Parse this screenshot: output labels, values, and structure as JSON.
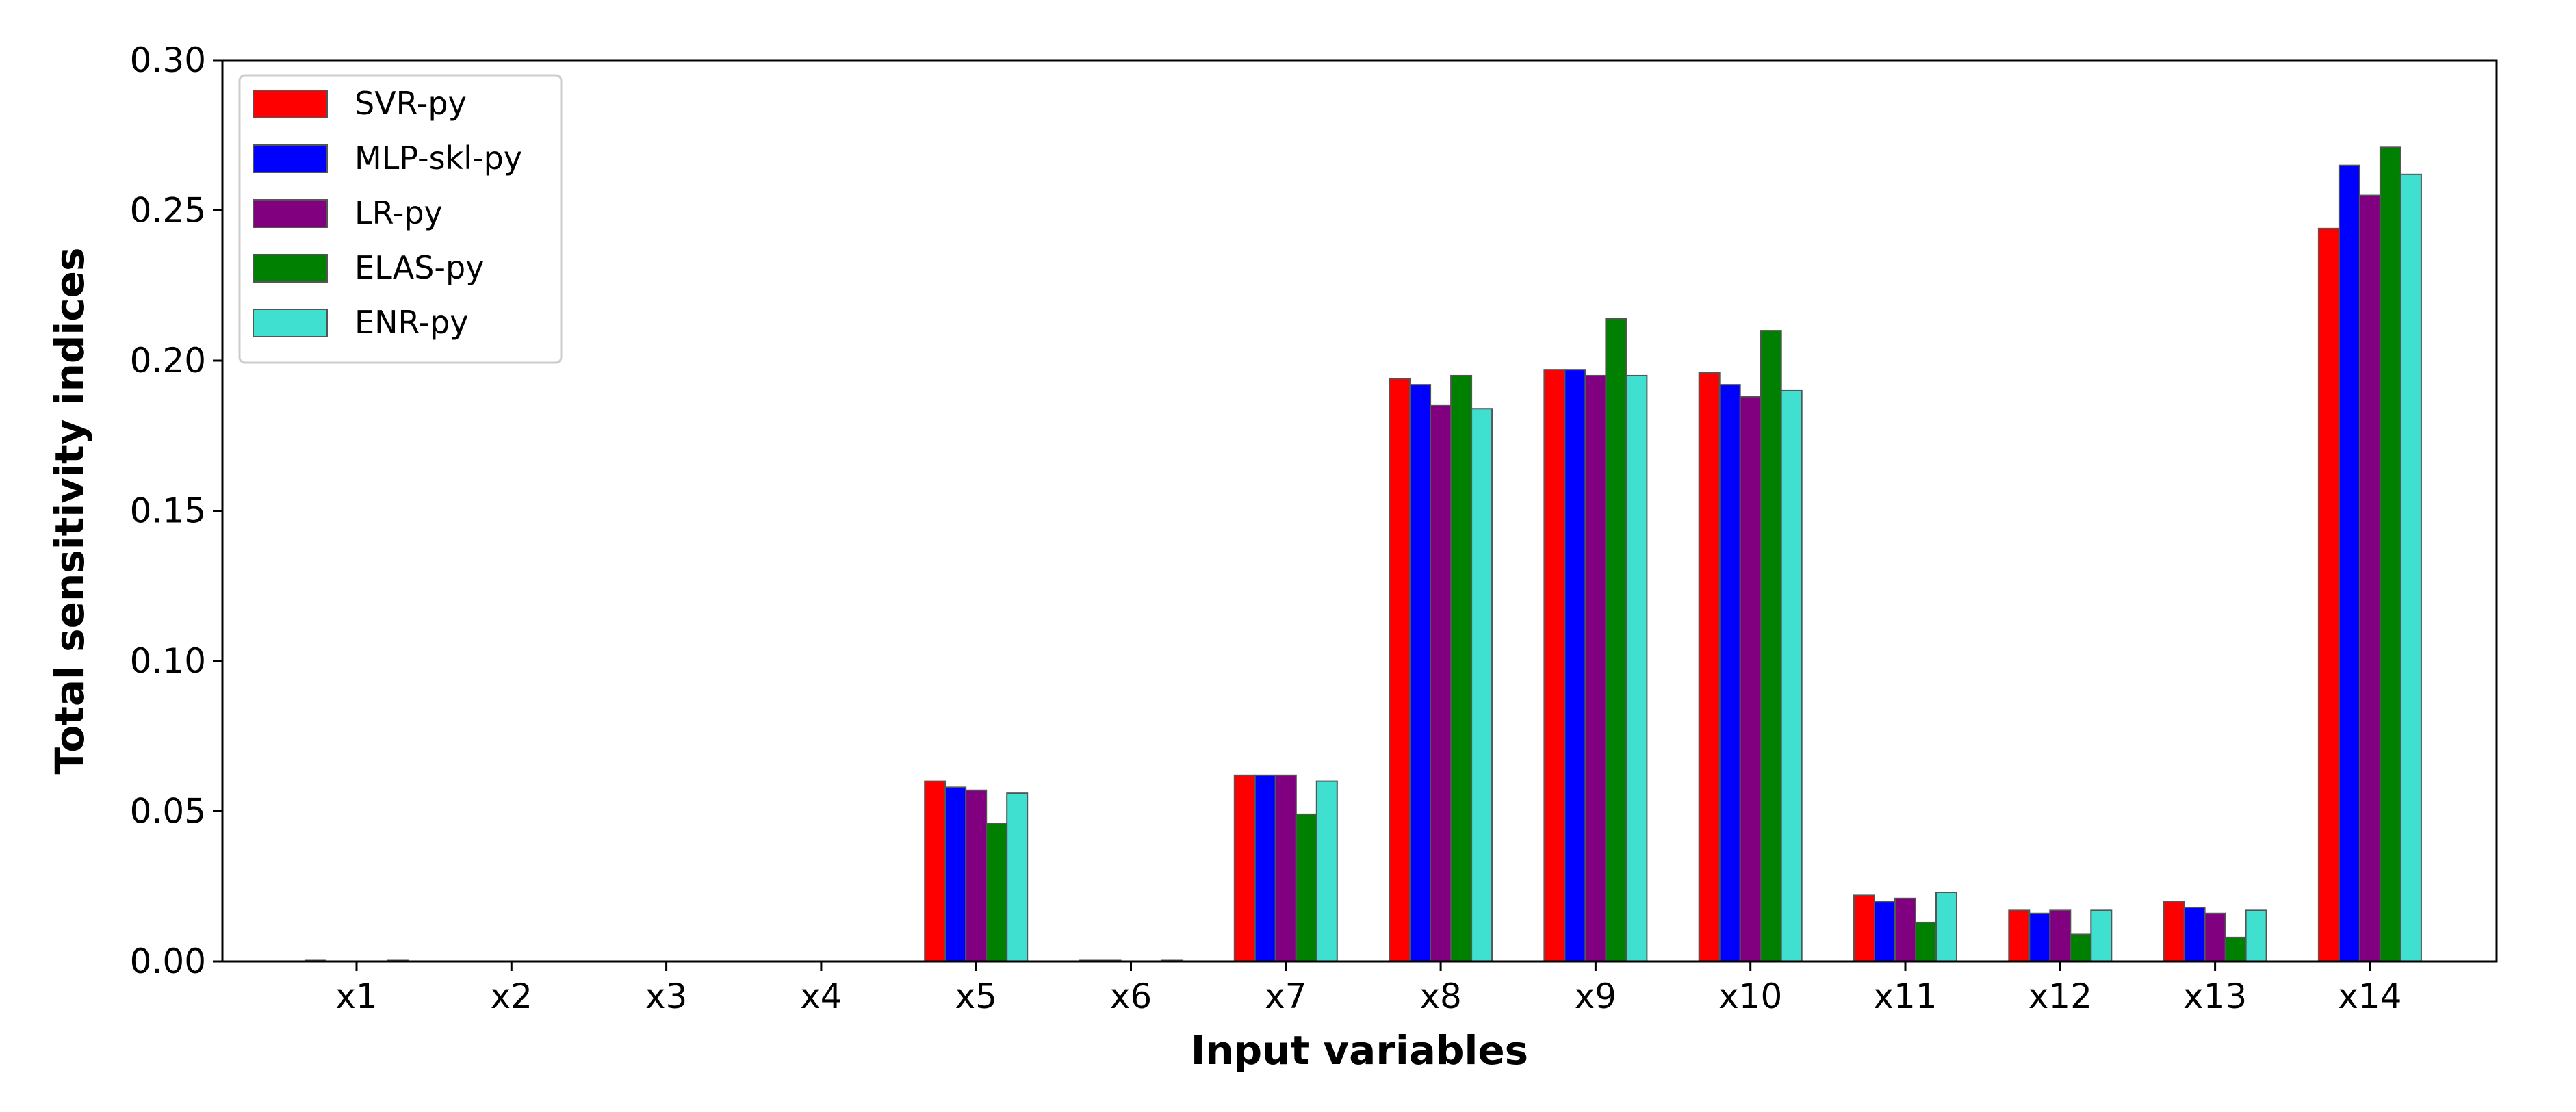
{
  "chart_data": {
    "type": "bar",
    "xlabel": "Input variables",
    "ylabel": "Total sensitivity indices",
    "categories": [
      "x1",
      "x2",
      "x3",
      "x4",
      "x5",
      "x6",
      "x7",
      "x8",
      "x9",
      "x10",
      "x11",
      "x12",
      "x13",
      "x14"
    ],
    "ylim": [
      0,
      0.3
    ],
    "yticks": [
      "0.00",
      "0.05",
      "0.10",
      "0.15",
      "0.20",
      "0.25",
      "0.30"
    ],
    "grid": false,
    "legend_position": "top-left",
    "series": [
      {
        "name": "SVR-py",
        "color": "#ff0000",
        "values": [
          0.0002,
          0.0,
          0.0,
          0.0,
          0.06,
          0.0002,
          0.062,
          0.194,
          0.197,
          0.196,
          0.022,
          0.017,
          0.02,
          0.244
        ]
      },
      {
        "name": "MLP-skl-py",
        "color": "#0000ff",
        "values": [
          0.0,
          0.0,
          0.0,
          0.0,
          0.058,
          0.0002,
          0.062,
          0.192,
          0.197,
          0.192,
          0.02,
          0.016,
          0.018,
          0.265
        ]
      },
      {
        "name": "LR-py",
        "color": "#800080",
        "values": [
          0.0,
          0.0,
          0.0,
          0.0,
          0.057,
          0.0,
          0.062,
          0.185,
          0.195,
          0.188,
          0.021,
          0.017,
          0.016,
          0.255
        ]
      },
      {
        "name": "ELAS-py",
        "color": "#008000",
        "values": [
          0.0,
          0.0,
          0.0,
          0.0,
          0.046,
          0.0,
          0.049,
          0.195,
          0.214,
          0.21,
          0.013,
          0.009,
          0.008,
          0.271
        ]
      },
      {
        "name": "ENR-py",
        "color": "#40e0d0",
        "values": [
          0.0003,
          0.0,
          0.0,
          0.0,
          0.056,
          0.0003,
          0.06,
          0.184,
          0.195,
          0.19,
          0.023,
          0.017,
          0.017,
          0.262
        ]
      }
    ]
  }
}
